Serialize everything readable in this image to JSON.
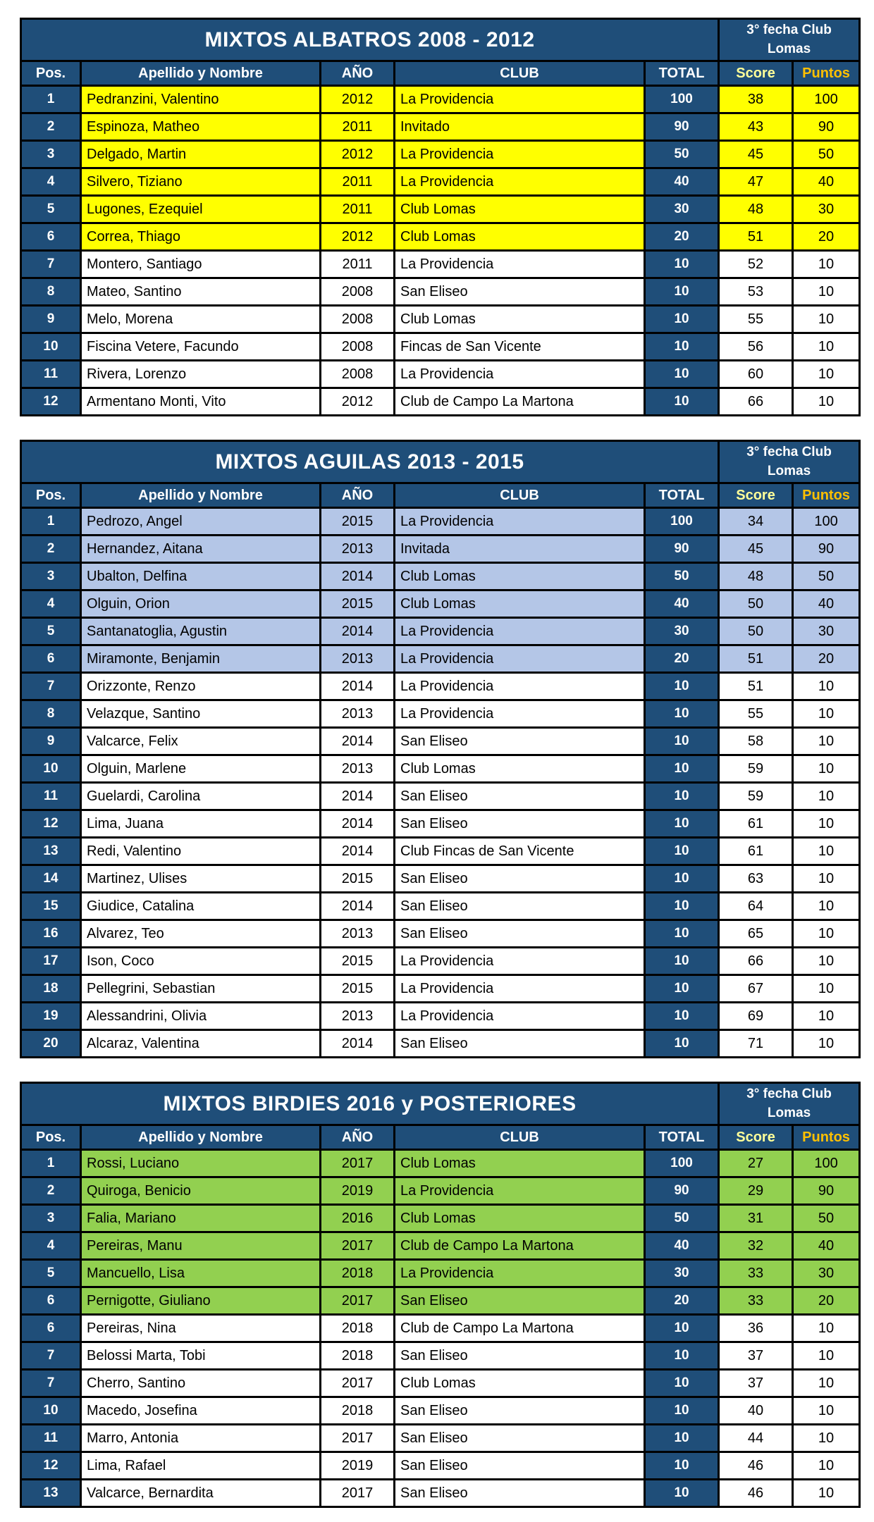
{
  "event_header": "3° fecha Club Lomas",
  "columns": {
    "pos": "Pos.",
    "name": "Apellido y Nombre",
    "year": "AÑO",
    "club": "CLUB",
    "total": "TOTAL",
    "score": "Score",
    "puntos": "Puntos"
  },
  "colors": {
    "header_blue": "#1F4E79",
    "header_text": "#FFFFFF",
    "score_header_text": "#FFFF99",
    "puntos_header_text": "#FFC000",
    "border": "#000000",
    "row_default": "#FFFFFF",
    "highlight_albatros": "#FFFF00",
    "highlight_aguilas": "#B4C6E7",
    "highlight_birdies": "#92D050"
  },
  "tables": [
    {
      "title": "MIXTOS ALBATROS 2008 - 2012",
      "highlight_color": "#FFFF00",
      "highlighted_row_count": 6,
      "rows": [
        {
          "pos": "1",
          "name": "Pedranzini, Valentino",
          "year": "2012",
          "club": "La Providencia",
          "total": "100",
          "score": "38",
          "puntos": "100"
        },
        {
          "pos": "2",
          "name": "Espinoza, Matheo",
          "year": "2011",
          "club": "Invitado",
          "total": "90",
          "score": "43",
          "puntos": "90"
        },
        {
          "pos": "3",
          "name": "Delgado, Martin",
          "year": "2012",
          "club": "La Providencia",
          "total": "50",
          "score": "45",
          "puntos": "50"
        },
        {
          "pos": "4",
          "name": "Silvero, Tiziano",
          "year": "2011",
          "club": "La Providencia",
          "total": "40",
          "score": "47",
          "puntos": "40"
        },
        {
          "pos": "5",
          "name": "Lugones, Ezequiel",
          "year": "2011",
          "club": "Club Lomas",
          "total": "30",
          "score": "48",
          "puntos": "30"
        },
        {
          "pos": "6",
          "name": "Correa, Thiago",
          "year": "2012",
          "club": "Club Lomas",
          "total": "20",
          "score": "51",
          "puntos": "20"
        },
        {
          "pos": "7",
          "name": "Montero, Santiago",
          "year": "2011",
          "club": "La Providencia",
          "total": "10",
          "score": "52",
          "puntos": "10"
        },
        {
          "pos": "8",
          "name": "Mateo, Santino",
          "year": "2008",
          "club": "San Eliseo",
          "total": "10",
          "score": "53",
          "puntos": "10"
        },
        {
          "pos": "9",
          "name": "Melo, Morena",
          "year": "2008",
          "club": "Club Lomas",
          "total": "10",
          "score": "55",
          "puntos": "10"
        },
        {
          "pos": "10",
          "name": "Fiscina Vetere, Facundo",
          "year": "2008",
          "club": "Fincas de San Vicente",
          "total": "10",
          "score": "56",
          "puntos": "10"
        },
        {
          "pos": "11",
          "name": "Rivera, Lorenzo",
          "year": "2008",
          "club": "La Providencia",
          "total": "10",
          "score": "60",
          "puntos": "10"
        },
        {
          "pos": "12",
          "name": "Armentano Monti, Vito",
          "year": "2012",
          "club": "Club de Campo La Martona",
          "total": "10",
          "score": "66",
          "puntos": "10"
        }
      ]
    },
    {
      "title": "MIXTOS AGUILAS 2013 - 2015",
      "highlight_color": "#B4C6E7",
      "highlighted_row_count": 6,
      "rows": [
        {
          "pos": "1",
          "name": "Pedrozo, Angel",
          "year": "2015",
          "club": "La Providencia",
          "total": "100",
          "score": "34",
          "puntos": "100"
        },
        {
          "pos": "2",
          "name": "Hernandez, Aitana",
          "year": "2013",
          "club": "Invitada",
          "total": "90",
          "score": "45",
          "puntos": "90"
        },
        {
          "pos": "3",
          "name": "Ubalton, Delfina",
          "year": "2014",
          "club": "Club Lomas",
          "total": "50",
          "score": "48",
          "puntos": "50"
        },
        {
          "pos": "4",
          "name": "Olguin, Orion",
          "year": "2015",
          "club": "Club Lomas",
          "total": "40",
          "score": "50",
          "puntos": "40"
        },
        {
          "pos": "5",
          "name": "Santanatoglia, Agustin",
          "year": "2014",
          "club": "La Providencia",
          "total": "30",
          "score": "50",
          "puntos": "30"
        },
        {
          "pos": "6",
          "name": "Miramonte, Benjamin",
          "year": "2013",
          "club": "La Providencia",
          "total": "20",
          "score": "51",
          "puntos": "20"
        },
        {
          "pos": "7",
          "name": "Orizzonte, Renzo",
          "year": "2014",
          "club": "La Providencia",
          "total": "10",
          "score": "51",
          "puntos": "10"
        },
        {
          "pos": "8",
          "name": "Velazque, Santino",
          "year": "2013",
          "club": "La Providencia",
          "total": "10",
          "score": "55",
          "puntos": "10"
        },
        {
          "pos": "9",
          "name": "Valcarce, Felix",
          "year": "2014",
          "club": "San Eliseo",
          "total": "10",
          "score": "58",
          "puntos": "10"
        },
        {
          "pos": "10",
          "name": "Olguin, Marlene",
          "year": "2013",
          "club": "Club Lomas",
          "total": "10",
          "score": "59",
          "puntos": "10"
        },
        {
          "pos": "11",
          "name": "Guelardi, Carolina",
          "year": "2014",
          "club": "San Eliseo",
          "total": "10",
          "score": "59",
          "puntos": "10"
        },
        {
          "pos": "12",
          "name": "Lima, Juana",
          "year": "2014",
          "club": "San Eliseo",
          "total": "10",
          "score": "61",
          "puntos": "10"
        },
        {
          "pos": "13",
          "name": "Redi, Valentino",
          "year": "2014",
          "club": "Club Fincas de San Vicente",
          "total": "10",
          "score": "61",
          "puntos": "10"
        },
        {
          "pos": "14",
          "name": "Martinez, Ulises",
          "year": "2015",
          "club": "San Eliseo",
          "total": "10",
          "score": "63",
          "puntos": "10"
        },
        {
          "pos": "15",
          "name": "Giudice, Catalina",
          "year": "2014",
          "club": "San Eliseo",
          "total": "10",
          "score": "64",
          "puntos": "10"
        },
        {
          "pos": "16",
          "name": "Alvarez, Teo",
          "year": "2013",
          "club": "San Eliseo",
          "total": "10",
          "score": "65",
          "puntos": "10"
        },
        {
          "pos": "17",
          "name": "Ison, Coco",
          "year": "2015",
          "club": "La Providencia",
          "total": "10",
          "score": "66",
          "puntos": "10"
        },
        {
          "pos": "18",
          "name": "Pellegrini, Sebastian",
          "year": "2015",
          "club": "La Providencia",
          "total": "10",
          "score": "67",
          "puntos": "10"
        },
        {
          "pos": "19",
          "name": "Alessandrini, Olivia",
          "year": "2013",
          "club": "La Providencia",
          "total": "10",
          "score": "69",
          "puntos": "10"
        },
        {
          "pos": "20",
          "name": "Alcaraz, Valentina",
          "year": "2014",
          "club": "San Eliseo",
          "total": "10",
          "score": "71",
          "puntos": "10"
        }
      ]
    },
    {
      "title": "MIXTOS BIRDIES 2016 y POSTERIORES",
      "highlight_color": "#92D050",
      "highlighted_row_count": 6,
      "rows": [
        {
          "pos": "1",
          "name": "Rossi, Luciano",
          "year": "2017",
          "club": "Club Lomas",
          "total": "100",
          "score": "27",
          "puntos": "100"
        },
        {
          "pos": "2",
          "name": "Quiroga, Benicio",
          "year": "2019",
          "club": "La Providencia",
          "total": "90",
          "score": "29",
          "puntos": "90"
        },
        {
          "pos": "3",
          "name": "Falia, Mariano",
          "year": "2016",
          "club": "Club Lomas",
          "total": "50",
          "score": "31",
          "puntos": "50"
        },
        {
          "pos": "4",
          "name": "Pereiras, Manu",
          "year": "2017",
          "club": "Club de Campo La Martona",
          "total": "40",
          "score": "32",
          "puntos": "40"
        },
        {
          "pos": "5",
          "name": "Mancuello, Lisa",
          "year": "2018",
          "club": "La Providencia",
          "total": "30",
          "score": "33",
          "puntos": "30"
        },
        {
          "pos": "6",
          "name": "Pernigotte, Giuliano",
          "year": "2017",
          "club": "San Eliseo",
          "total": "20",
          "score": "33",
          "puntos": "20"
        },
        {
          "pos": "6",
          "name": "Pereiras, Nina",
          "year": "2018",
          "club": "Club de Campo La Martona",
          "total": "10",
          "score": "36",
          "puntos": "10"
        },
        {
          "pos": "7",
          "name": "Belossi Marta, Tobi",
          "year": "2018",
          "club": "San Eliseo",
          "total": "10",
          "score": "37",
          "puntos": "10"
        },
        {
          "pos": "7",
          "name": "Cherro, Santino",
          "year": "2017",
          "club": "Club Lomas",
          "total": "10",
          "score": "37",
          "puntos": "10"
        },
        {
          "pos": "10",
          "name": "Macedo, Josefina",
          "year": "2018",
          "club": "San Eliseo",
          "total": "10",
          "score": "40",
          "puntos": "10"
        },
        {
          "pos": "11",
          "name": "Marro, Antonia",
          "year": "2017",
          "club": "San Eliseo",
          "total": "10",
          "score": "44",
          "puntos": "10"
        },
        {
          "pos": "12",
          "name": "Lima, Rafael",
          "year": "2019",
          "club": "San Eliseo",
          "total": "10",
          "score": "46",
          "puntos": "10"
        },
        {
          "pos": "13",
          "name": "Valcarce, Bernardita",
          "year": "2017",
          "club": "San Eliseo",
          "total": "10",
          "score": "46",
          "puntos": "10"
        }
      ]
    }
  ]
}
